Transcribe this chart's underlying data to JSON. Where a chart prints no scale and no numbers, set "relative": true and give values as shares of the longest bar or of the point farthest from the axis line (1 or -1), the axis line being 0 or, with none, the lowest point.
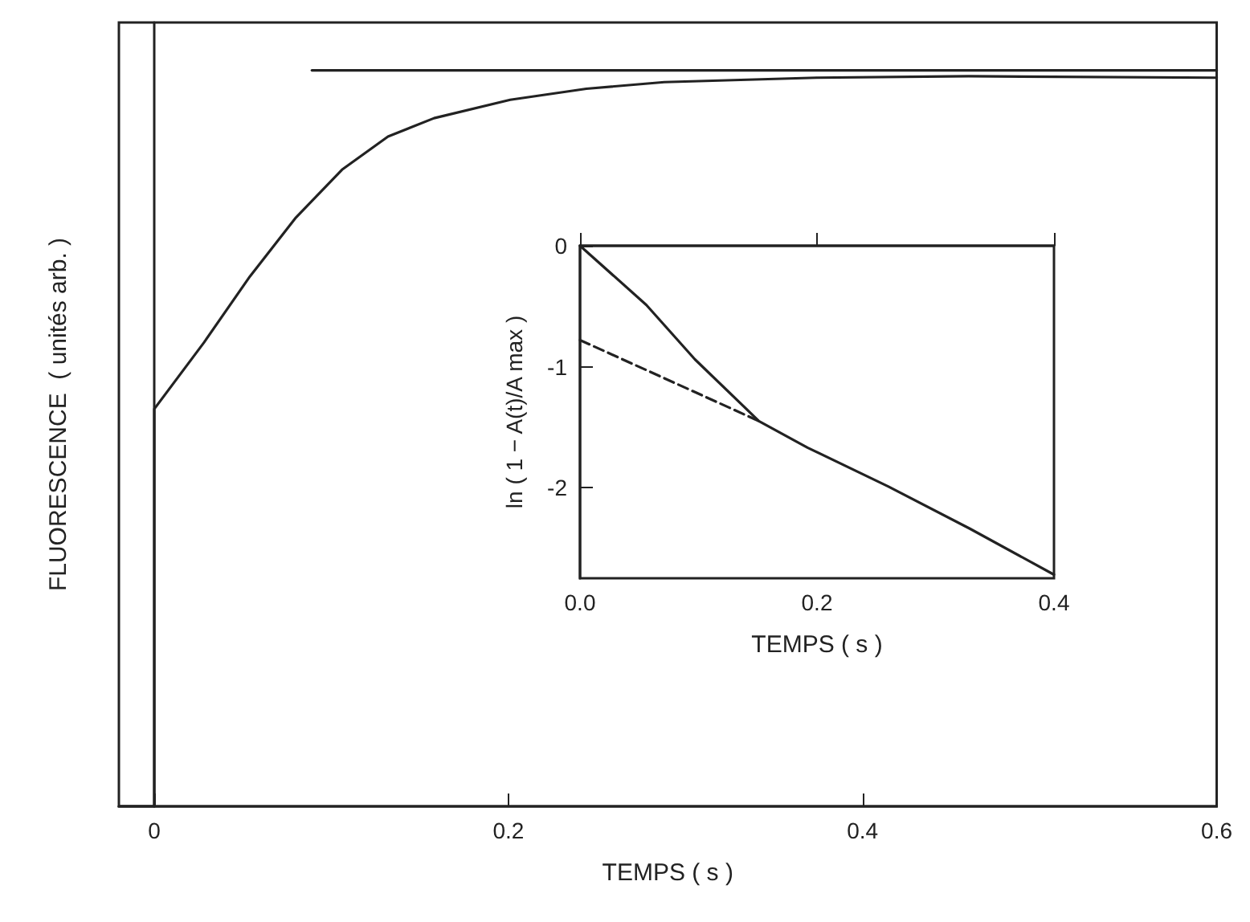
{
  "chart_data": [
    {
      "type": "line",
      "xlabel": "TEMPS ( s )",
      "ylabel": "FLUORESCENCE  ( unités arb. )",
      "relative": true,
      "xlim": [
        -0.02,
        0.6
      ],
      "xticks": [
        0,
        0.2,
        0.4,
        0.6
      ],
      "tick_labels": "x",
      "grid": false,
      "marker": "none",
      "series": [
        {
          "color": "#222222",
          "line_style": "solid",
          "x": [
            -0.02,
            0,
            0,
            0.028,
            0.054,
            0.08,
            0.106,
            0.132,
            0.158,
            0.201,
            0.244,
            0.288,
            0.374,
            0.46,
            0.6
          ],
          "values": [
            0,
            0,
            0.54,
            0.63,
            0.72,
            0.8,
            0.865,
            0.91,
            0.935,
            0.96,
            0.975,
            0.984,
            0.99,
            0.992,
            0.99
          ]
        },
        {
          "color": "#222222",
          "line_style": "solid",
          "x": [
            0.089,
            0.6
          ],
          "values": [
            1,
            1
          ]
        }
      ]
    },
    {
      "type": "line",
      "xlabel": "TEMPS ( s )",
      "ylabel": "ln ( 1 − A(t)/A max )",
      "xlim": [
        0,
        0.4
      ],
      "xticks": [
        {
          "value": 0,
          "label": "0.0"
        },
        0.2,
        0.4
      ],
      "ylim": [
        -2.75,
        0
      ],
      "yticks": [
        0,
        -1,
        -2
      ],
      "grid": false,
      "marker": "none",
      "series": [
        {
          "color": "#222222",
          "line_style": "solid",
          "x": [
            0,
            0.056,
            0.097,
            0.151,
            0.192,
            0.26,
            0.329,
            0.4
          ],
          "values": [
            0,
            -0.49,
            -0.94,
            -1.45,
            -1.67,
            -1.99,
            -2.34,
            -2.72
          ]
        },
        {
          "color": "#222222",
          "line_style": "dashed",
          "x": [
            0,
            0.151
          ],
          "values": [
            -0.78,
            -1.45
          ]
        }
      ]
    }
  ]
}
